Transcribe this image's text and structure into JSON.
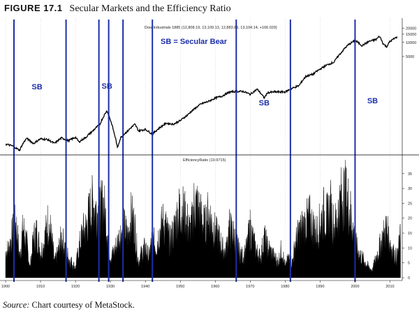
{
  "figure": {
    "number": "FIGURE 17.1",
    "title": "Secular Markets and the Efficiency Ratio"
  },
  "source": {
    "label": "Source:",
    "text": "Chart courtesy of MetaStock."
  },
  "chart_data": [
    {
      "type": "line",
      "panel": "price",
      "series_label": "Dow Industrials 1885 (12,808.19, 13,109.13, 12,883.89, 13,104.14, +166.029)",
      "annotation": "SB = Secular Bear",
      "segment_labels": [
        {
          "text": "SB",
          "year": 1909
        },
        {
          "text": "SB",
          "year": 1929
        },
        {
          "text": "SB",
          "year": 1974
        },
        {
          "text": "SB",
          "year": 2005
        }
      ],
      "y_scale": "log",
      "ylim": [
        40,
        25000
      ],
      "y_ticks": [
        {
          "value": 20000,
          "label": "20000"
        },
        {
          "value": 15000,
          "label": "15000"
        },
        {
          "value": 10000,
          "label": "10000"
        },
        {
          "value": 5000,
          "label": "5000"
        }
      ],
      "x": [
        1900,
        1902,
        1904,
        1906,
        1908,
        1910,
        1912,
        1914,
        1916,
        1918,
        1920,
        1921,
        1923,
        1925,
        1927,
        1928,
        1929,
        1930,
        1931,
        1932,
        1933,
        1935,
        1937,
        1938,
        1940,
        1942,
        1944,
        1946,
        1948,
        1950,
        1952,
        1954,
        1956,
        1958,
        1960,
        1962,
        1964,
        1966,
        1968,
        1970,
        1972,
        1974,
        1975,
        1977,
        1980,
        1982,
        1984,
        1986,
        1988,
        1990,
        1992,
        1994,
        1996,
        1998,
        2000,
        2002,
        2003,
        2004,
        2006,
        2007,
        2008,
        2009,
        2010,
        2012
      ],
      "y": [
        68,
        62,
        50,
        90,
        70,
        88,
        85,
        70,
        92,
        80,
        95,
        75,
        95,
        130,
        180,
        260,
        350,
        220,
        120,
        55,
        95,
        130,
        180,
        130,
        140,
        110,
        150,
        190,
        180,
        215,
        280,
        380,
        490,
        550,
        650,
        720,
        870,
        900,
        900,
        780,
        1000,
        650,
        850,
        880,
        880,
        1050,
        1200,
        1900,
        2100,
        2700,
        3300,
        3800,
        6000,
        8800,
        11000,
        8500,
        9500,
        10500,
        11500,
        13500,
        9500,
        8000,
        10500,
        13000
      ],
      "x_ticks": [
        1900,
        1910,
        1920,
        1930,
        1940,
        1950,
        1960,
        1970,
        1980,
        1990,
        2000,
        2010
      ],
      "x_tick_labels": [
        "1900",
        "1910",
        "1920",
        "1930",
        "1940",
        "1950",
        "1960",
        "1970",
        "1980",
        "1990",
        "2000",
        "2010"
      ],
      "xlim": [
        1899.2,
        2013.5
      ]
    },
    {
      "type": "area",
      "panel": "indicator",
      "series_label": "EfficiencyRatio (10.9715)",
      "ylim": [
        0,
        38
      ],
      "y_ticks": [
        0,
        5,
        10,
        15,
        20,
        25,
        30,
        35
      ],
      "y_tick_labels": [
        "0",
        "5",
        "10",
        "15",
        "20",
        "25",
        "30",
        "35"
      ],
      "x": [
        1900,
        1901,
        1902,
        1903,
        1904,
        1905,
        1906,
        1907,
        1908,
        1909,
        1910,
        1911,
        1912,
        1913,
        1914,
        1915,
        1916,
        1917,
        1918,
        1919,
        1920,
        1921,
        1922,
        1923,
        1924,
        1925,
        1926,
        1927,
        1928,
        1929,
        1930,
        1931,
        1932,
        1933,
        1934,
        1935,
        1936,
        1937,
        1938,
        1939,
        1940,
        1941,
        1942,
        1943,
        1944,
        1945,
        1946,
        1947,
        1948,
        1949,
        1950,
        1951,
        1952,
        1953,
        1954,
        1955,
        1956,
        1957,
        1958,
        1959,
        1960,
        1961,
        1962,
        1963,
        1964,
        1965,
        1966,
        1967,
        1968,
        1969,
        1970,
        1971,
        1972,
        1973,
        1974,
        1975,
        1976,
        1977,
        1978,
        1979,
        1980,
        1981,
        1982,
        1983,
        1984,
        1985,
        1986,
        1987,
        1988,
        1989,
        1990,
        1991,
        1992,
        1993,
        1994,
        1995,
        1996,
        1997,
        1998,
        1999,
        2000,
        2001,
        2002,
        2003,
        2004,
        2005,
        2006,
        2007,
        2008,
        2009,
        2010,
        2011,
        2012,
        2013
      ],
      "y": [
        10,
        12,
        18,
        22,
        8,
        20,
        14,
        4,
        16,
        18,
        10,
        14,
        22,
        18,
        6,
        10,
        16,
        12,
        8,
        6,
        4,
        12,
        18,
        20,
        26,
        30,
        27,
        26,
        30,
        20,
        8,
        10,
        14,
        18,
        20,
        16,
        25,
        20,
        6,
        10,
        12,
        8,
        16,
        12,
        18,
        22,
        20,
        14,
        18,
        24,
        28,
        26,
        22,
        18,
        30,
        28,
        24,
        20,
        26,
        22,
        18,
        16,
        12,
        10,
        20,
        18,
        14,
        10,
        8,
        12,
        20,
        14,
        10,
        8,
        16,
        12,
        10,
        8,
        6,
        12,
        4,
        8,
        6,
        14,
        18,
        20,
        22,
        24,
        20,
        18,
        22,
        26,
        24,
        28,
        20,
        25,
        32,
        34,
        30,
        24,
        14,
        10,
        8,
        6,
        4,
        3,
        8,
        12,
        16,
        20,
        14,
        10,
        8,
        16
      ]
    }
  ],
  "secular_bear_lines": [
    1902.4,
    1917.3,
    1926.7,
    1929.5,
    1933.6,
    1942.0,
    1966.0,
    1981.5,
    2000.0
  ]
}
